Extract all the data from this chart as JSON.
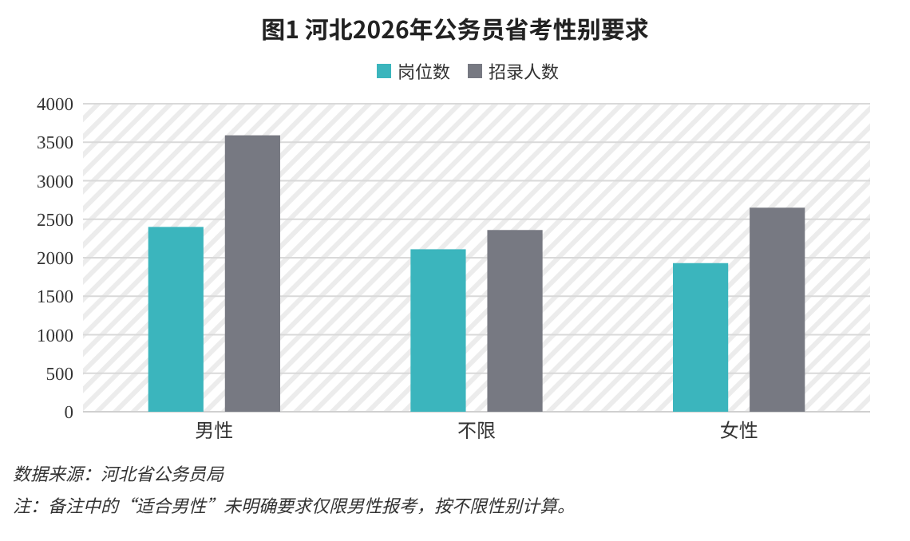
{
  "chart_data": {
    "type": "bar",
    "title": "图1  河北2026年公务员省考性别要求",
    "categories": [
      "男性",
      "不限",
      "女性"
    ],
    "series": [
      {
        "name": "岗位数",
        "color": "#3bb5bd",
        "values": [
          2400,
          2110,
          1930
        ]
      },
      {
        "name": "招录人数",
        "color": "#777982",
        "values": [
          3590,
          2360,
          2650
        ]
      }
    ],
    "ylim": [
      0,
      4000
    ],
    "yticks": [
      0,
      500,
      1000,
      1500,
      2000,
      2500,
      3000,
      3500,
      4000
    ],
    "grid": "y",
    "legend": "top",
    "annotations": [
      "数据来源：河北省公务员局",
      "注：备注中的“适合男性”未明确要求仅限男性报考，按不限性别计算。"
    ]
  }
}
